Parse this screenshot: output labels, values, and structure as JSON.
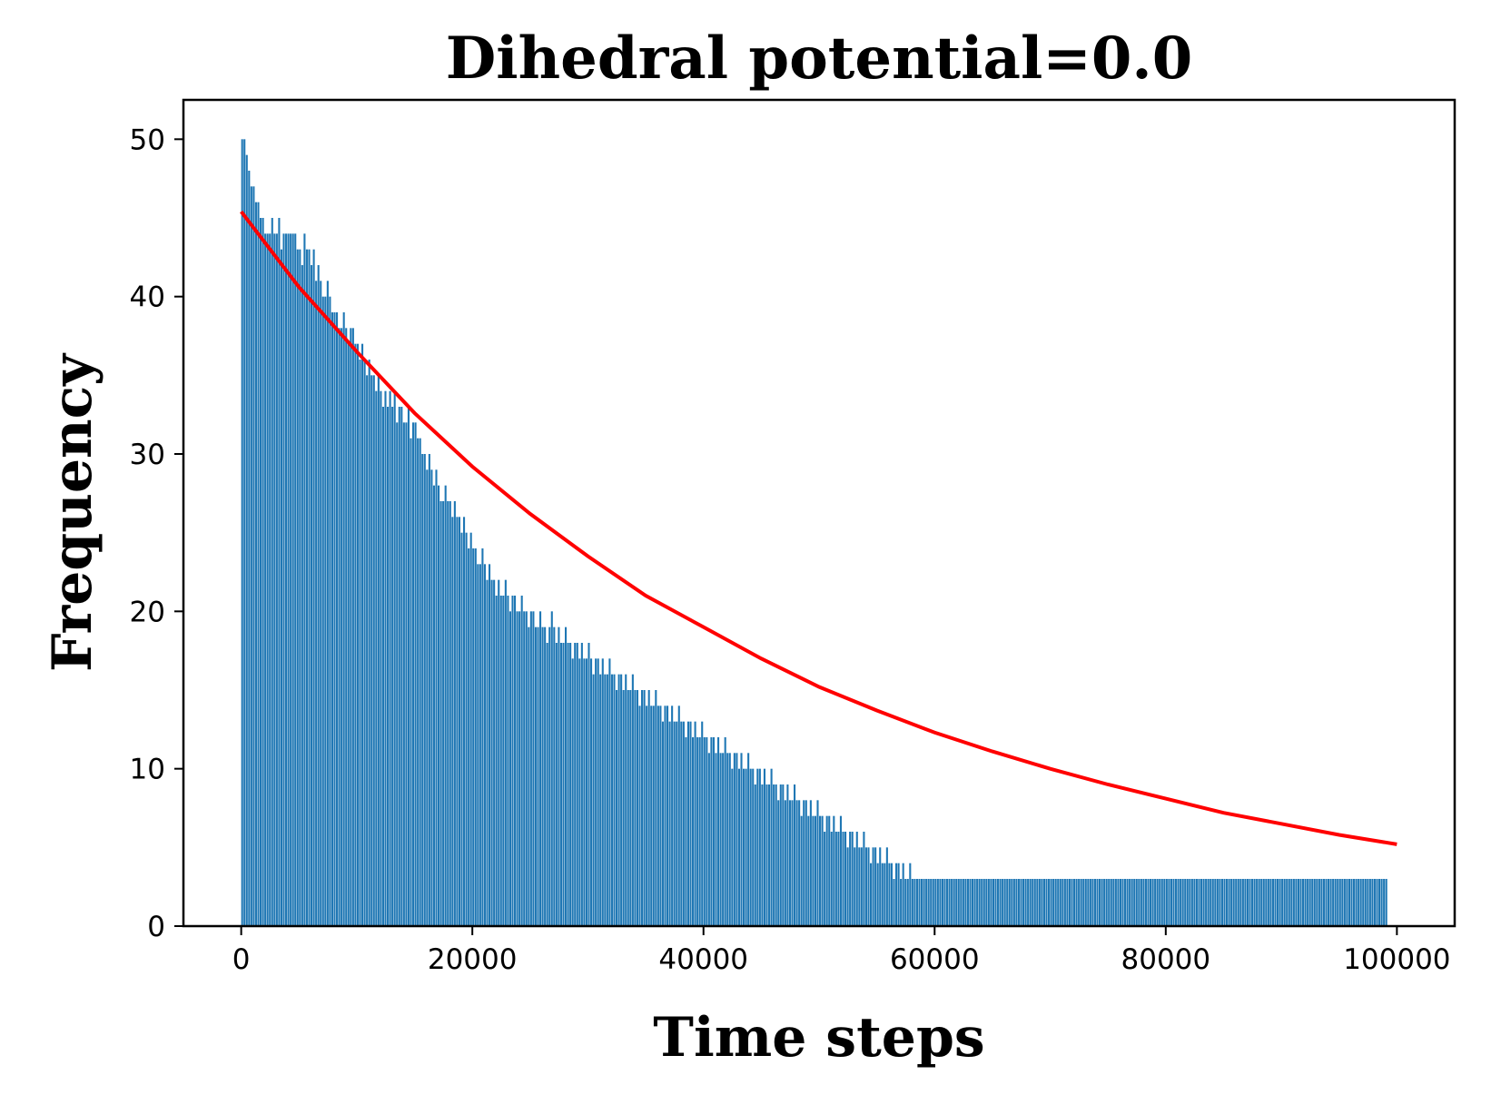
{
  "chart_data": {
    "type": "bar",
    "title": "Dihedral potential=0.0",
    "xlabel": "Time steps",
    "ylabel": "Frequency",
    "xlim": [
      -5000,
      105000
    ],
    "ylim": [
      0,
      52.5
    ],
    "xticks": [
      0,
      20000,
      40000,
      60000,
      80000,
      100000
    ],
    "yticks": [
      0,
      10,
      20,
      30,
      40,
      50
    ],
    "grid": false,
    "bar_color": "#1f77b4",
    "bins": {
      "x_start": 0,
      "x_end": 100000,
      "bin_width": 200,
      "count": 500,
      "values": [
        50,
        50,
        49,
        48,
        47,
        47,
        46,
        46,
        45,
        45,
        44,
        44,
        44,
        45,
        44,
        44,
        45,
        43,
        44,
        44,
        44,
        44,
        44,
        44,
        43,
        43,
        42,
        44,
        43,
        43,
        42,
        43,
        41,
        42,
        41,
        40,
        40,
        41,
        40,
        39,
        39,
        39,
        38,
        38,
        39,
        38,
        37,
        38,
        38,
        37,
        37,
        36,
        37,
        36,
        35,
        36,
        35,
        35,
        34,
        35,
        34,
        33,
        34,
        33,
        34,
        33,
        34,
        32,
        33,
        33,
        32,
        32,
        33,
        31,
        32,
        32,
        31,
        31,
        30,
        30,
        29,
        30,
        29,
        28,
        29,
        28,
        27,
        27,
        28,
        27,
        27,
        26,
        27,
        26,
        26,
        25,
        26,
        25,
        24,
        25,
        24,
        24,
        23,
        23,
        24,
        23,
        22,
        23,
        22,
        22,
        21,
        22,
        21,
        21,
        22,
        21,
        20,
        21,
        21,
        20,
        20,
        21,
        20,
        20,
        19,
        20,
        20,
        19,
        19,
        20,
        19,
        19,
        18,
        19,
        20,
        19,
        18,
        19,
        18,
        18,
        19,
        18,
        18,
        17,
        18,
        18,
        17,
        18,
        17,
        17,
        18,
        17,
        16,
        17,
        17,
        16,
        17,
        16,
        16,
        17,
        16,
        16,
        15,
        16,
        16,
        15,
        16,
        15,
        15,
        16,
        15,
        15,
        14,
        15,
        15,
        14,
        15,
        14,
        14,
        15,
        14,
        14,
        13,
        14,
        14,
        13,
        14,
        13,
        13,
        14,
        13,
        13,
        12,
        13,
        13,
        12,
        13,
        12,
        12,
        13,
        12,
        12,
        11,
        12,
        12,
        11,
        12,
        11,
        11,
        12,
        11,
        11,
        10,
        11,
        11,
        10,
        11,
        10,
        10,
        11,
        10,
        10,
        9,
        10,
        10,
        9,
        10,
        9,
        9,
        10,
        9,
        9,
        8,
        9,
        9,
        8,
        9,
        8,
        8,
        9,
        8,
        8,
        7,
        8,
        8,
        7,
        8,
        7,
        7,
        8,
        7,
        7,
        6,
        7,
        7,
        6,
        7,
        6,
        6,
        7,
        6,
        6,
        5,
        6,
        6,
        5,
        6,
        5,
        5,
        6,
        5,
        5,
        4,
        5,
        5,
        4,
        5,
        4,
        4,
        5,
        4,
        4,
        3,
        4,
        4,
        3,
        4,
        3,
        3,
        4,
        3,
        3,
        3,
        3,
        3,
        3,
        3,
        3,
        3,
        3,
        3,
        3,
        3,
        3,
        3,
        3,
        3,
        3,
        3,
        3,
        3,
        3,
        3,
        3,
        3,
        3,
        3,
        3,
        3,
        3,
        3,
        3,
        3,
        3,
        3,
        3,
        3,
        3,
        3,
        3,
        3,
        3,
        3,
        3,
        3,
        3,
        3,
        3,
        3,
        3,
        3,
        3,
        3,
        3,
        3,
        3,
        3,
        3,
        3,
        3,
        3,
        3,
        3,
        3,
        3,
        3,
        3,
        3,
        3,
        3,
        3,
        3,
        3,
        3,
        3,
        3,
        3,
        3,
        3,
        3,
        3,
        3,
        3,
        3,
        3,
        3,
        3,
        3,
        3,
        3,
        3,
        3,
        3,
        3,
        3,
        3,
        3,
        3,
        3,
        3,
        3,
        3,
        3,
        3,
        3,
        3,
        3,
        3,
        3,
        3,
        3,
        3,
        3,
        3,
        3,
        3,
        3,
        3,
        3,
        3,
        3,
        3,
        3,
        3,
        3,
        3,
        3,
        3,
        3,
        3,
        3,
        3,
        3,
        3,
        3,
        3,
        3,
        3,
        3,
        3,
        3,
        3,
        3,
        3,
        3,
        3,
        3,
        3,
        3,
        3,
        3,
        3,
        3,
        3,
        3,
        3,
        3,
        3,
        3,
        3,
        3,
        3,
        3,
        3,
        3,
        3,
        3,
        3,
        3,
        3,
        3,
        3,
        3,
        3,
        3,
        3,
        3,
        3,
        3,
        3,
        3,
        3,
        3,
        3,
        3,
        3,
        3,
        3,
        3,
        3,
        3,
        3,
        3,
        3,
        3,
        3,
        3,
        3,
        3,
        3,
        3,
        3,
        3,
        3,
        3,
        3
      ]
    },
    "fit_curve": {
      "type": "exponential",
      "color": "#ff0000",
      "x": [
        0,
        5000,
        10000,
        15000,
        20000,
        25000,
        30000,
        35000,
        40000,
        45000,
        50000,
        55000,
        60000,
        65000,
        70000,
        75000,
        80000,
        85000,
        90000,
        95000,
        100000
      ],
      "y": [
        45.4,
        40.6,
        36.5,
        32.6,
        29.2,
        26.2,
        23.5,
        21.0,
        19.0,
        17.0,
        15.2,
        13.7,
        12.3,
        11.1,
        10.0,
        9.0,
        8.1,
        7.2,
        6.5,
        5.8,
        5.2
      ]
    }
  }
}
